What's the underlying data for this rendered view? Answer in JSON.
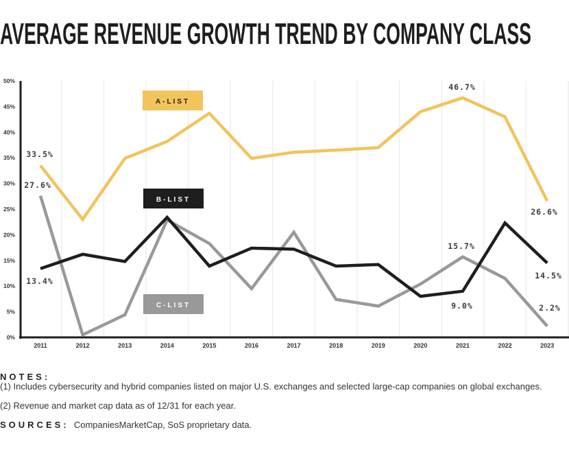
{
  "chart_data": {
    "type": "line",
    "title": "AVERAGE REVENUE GROWTH TREND BY COMPANY CLASS",
    "x": [
      "2011",
      "2012",
      "2013",
      "2014",
      "2015",
      "2016",
      "2017",
      "2018",
      "2019",
      "2020",
      "2021",
      "2022",
      "2023"
    ],
    "ylim": [
      0,
      50
    ],
    "yticks": [
      "0%",
      "5%",
      "10%",
      "15%",
      "20%",
      "25%",
      "30%",
      "35%",
      "40%",
      "45%",
      "50%"
    ],
    "grid": "vertical",
    "series": [
      {
        "name": "A-LIST",
        "color": "#F2C45C",
        "values": [
          33.5,
          23.0,
          34.9,
          38.2,
          43.7,
          34.9,
          36.1,
          36.5,
          37.0,
          44.0,
          46.7,
          43.0,
          26.6
        ]
      },
      {
        "name": "B-LIST",
        "color": "#1E1E1E",
        "values": [
          13.4,
          16.2,
          14.8,
          23.4,
          13.9,
          17.4,
          17.2,
          13.9,
          14.2,
          8.0,
          9.0,
          22.3,
          14.5
        ]
      },
      {
        "name": "C-LIST",
        "color": "#999999",
        "values": [
          27.6,
          0.5,
          4.4,
          22.9,
          18.3,
          9.5,
          20.5,
          7.4,
          6.1,
          10.4,
          15.7,
          11.5,
          2.2
        ]
      }
    ],
    "data_labels": [
      "33.5%",
      "27.6%",
      "13.4%",
      "46.7%",
      "26.6%",
      "15.7%",
      "14.5%",
      "9.0%",
      "2.2%"
    ]
  },
  "notes": {
    "heading": "NOTES:",
    "note1": "(1) Includes cybersecurity and hybrid companies listed on major U.S. exchanges and selected large-cap companies on global exchanges.",
    "note2": "(2) Revenue and market cap data as of 12/31 for each year.",
    "sources_heading": "SOURCES:",
    "sources": "CompaniesMarketCap, SoS proprietary data."
  }
}
